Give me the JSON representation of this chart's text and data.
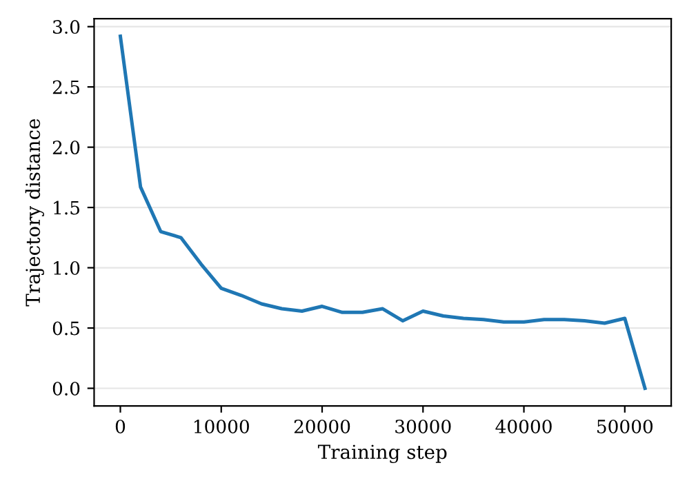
{
  "chart_data": {
    "type": "line",
    "xlabel": "Training step",
    "ylabel": "Trajectory distance",
    "x": [
      0,
      2000,
      4000,
      6000,
      8000,
      10000,
      12000,
      14000,
      16000,
      18000,
      20000,
      22000,
      24000,
      26000,
      28000,
      30000,
      32000,
      34000,
      36000,
      38000,
      40000,
      42000,
      44000,
      46000,
      48000,
      50000,
      52000
    ],
    "series": [
      {
        "color": "#1f77b4",
        "values": [
          2.92,
          1.67,
          1.3,
          1.25,
          1.03,
          0.83,
          0.77,
          0.7,
          0.66,
          0.64,
          0.68,
          0.63,
          0.63,
          0.66,
          0.56,
          0.64,
          0.6,
          0.58,
          0.57,
          0.55,
          0.55,
          0.57,
          0.57,
          0.56,
          0.54,
          0.58,
          0.0
        ]
      }
    ],
    "xlim": [
      -2600,
      54600
    ],
    "ylim": [
      -0.146,
      3.066
    ],
    "xticks": [
      0,
      10000,
      20000,
      30000,
      40000,
      50000
    ],
    "yticks": [
      {
        "value": 0,
        "label": "0.0"
      },
      {
        "value": 0.5,
        "label": "0.5"
      },
      {
        "value": 1,
        "label": "1.0"
      },
      {
        "value": 1.5,
        "label": "1.5"
      },
      {
        "value": 2,
        "label": "2.0"
      },
      {
        "value": 2.5,
        "label": "2.5"
      },
      {
        "value": 3,
        "label": "3.0"
      }
    ],
    "grid": "y"
  }
}
